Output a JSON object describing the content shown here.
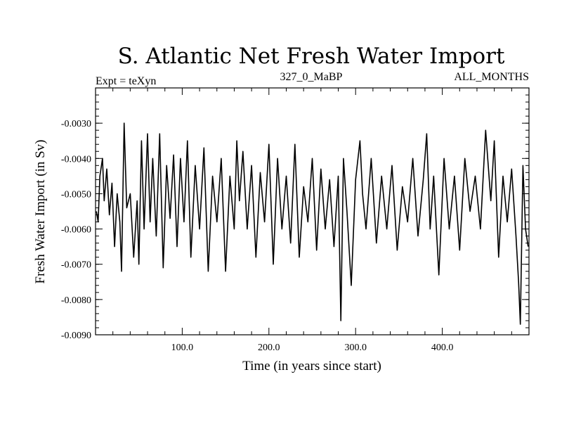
{
  "chart_data": {
    "type": "line",
    "title": "S. Atlantic Net Fresh Water Import",
    "subtitle_left": "Expt = teXyn",
    "subtitle_center": "327_0_MaBP",
    "subtitle_right": "ALL_MONTHS",
    "xlabel": "Time (in years since start)",
    "ylabel": "Fresh Water Import (in Sv)",
    "xlim": [
      0,
      500
    ],
    "ylim": [
      -0.009,
      -0.002
    ],
    "x_ticks": [
      100,
      200,
      300,
      400
    ],
    "x_tick_labels": [
      "100.0",
      "200.0",
      "300.0",
      "400.0"
    ],
    "y_ticks": [
      -0.003,
      -0.004,
      -0.005,
      -0.006,
      -0.007,
      -0.008,
      -0.009
    ],
    "y_tick_labels": [
      "-0.0030",
      "-0.0040",
      "-0.0050",
      "-0.0060",
      "-0.0070",
      "-0.0080",
      "-0.0090"
    ],
    "grid": false,
    "color": "#000000",
    "series": [
      {
        "x": [
          1,
          3,
          5,
          8,
          10,
          13,
          16,
          19,
          22,
          25,
          28,
          30,
          33,
          36,
          40,
          44,
          48,
          50,
          53,
          56,
          60,
          63,
          66,
          70,
          74,
          78,
          82,
          86,
          90,
          94,
          98,
          102,
          106,
          110,
          115,
          120,
          125,
          130,
          135,
          140,
          145,
          150,
          155,
          160,
          163,
          166,
          170,
          175,
          180,
          185,
          190,
          195,
          200,
          205,
          210,
          215,
          220,
          225,
          230,
          235,
          240,
          245,
          250,
          255,
          260,
          265,
          270,
          275,
          280,
          283,
          286,
          290,
          295,
          300,
          305,
          308,
          312,
          318,
          324,
          330,
          336,
          342,
          348,
          354,
          360,
          366,
          372,
          378,
          382,
          386,
          390,
          396,
          402,
          408,
          414,
          420,
          426,
          432,
          438,
          444,
          450,
          456,
          460,
          465,
          470,
          475,
          480,
          485,
          488,
          490,
          493,
          496,
          499
        ],
        "y": [
          -0.0055,
          -0.0058,
          -0.0045,
          -0.004,
          -0.0052,
          -0.0043,
          -0.0056,
          -0.0047,
          -0.0065,
          -0.005,
          -0.0058,
          -0.0072,
          -0.003,
          -0.0054,
          -0.005,
          -0.0068,
          -0.0052,
          -0.007,
          -0.0035,
          -0.006,
          -0.0033,
          -0.0058,
          -0.004,
          -0.0062,
          -0.0033,
          -0.0071,
          -0.0042,
          -0.0057,
          -0.0039,
          -0.0065,
          -0.004,
          -0.0058,
          -0.0035,
          -0.0068,
          -0.0042,
          -0.006,
          -0.0037,
          -0.0072,
          -0.0045,
          -0.0058,
          -0.004,
          -0.0072,
          -0.0045,
          -0.006,
          -0.0035,
          -0.0052,
          -0.0038,
          -0.006,
          -0.0042,
          -0.0068,
          -0.0044,
          -0.0058,
          -0.0036,
          -0.007,
          -0.004,
          -0.006,
          -0.0045,
          -0.0064,
          -0.0036,
          -0.0068,
          -0.0048,
          -0.0058,
          -0.004,
          -0.0066,
          -0.0043,
          -0.006,
          -0.0046,
          -0.0065,
          -0.0045,
          -0.0086,
          -0.004,
          -0.0055,
          -0.0076,
          -0.0046,
          -0.0035,
          -0.005,
          -0.006,
          -0.004,
          -0.0064,
          -0.0045,
          -0.006,
          -0.0042,
          -0.0066,
          -0.0048,
          -0.0058,
          -0.004,
          -0.0062,
          -0.0046,
          -0.0033,
          -0.006,
          -0.0045,
          -0.0073,
          -0.004,
          -0.006,
          -0.0045,
          -0.0066,
          -0.004,
          -0.0055,
          -0.0045,
          -0.006,
          -0.0032,
          -0.0052,
          -0.0035,
          -0.0068,
          -0.0045,
          -0.0058,
          -0.0043,
          -0.0062,
          -0.0075,
          -0.0087,
          -0.0042,
          -0.006,
          -0.0065
        ]
      }
    ]
  }
}
